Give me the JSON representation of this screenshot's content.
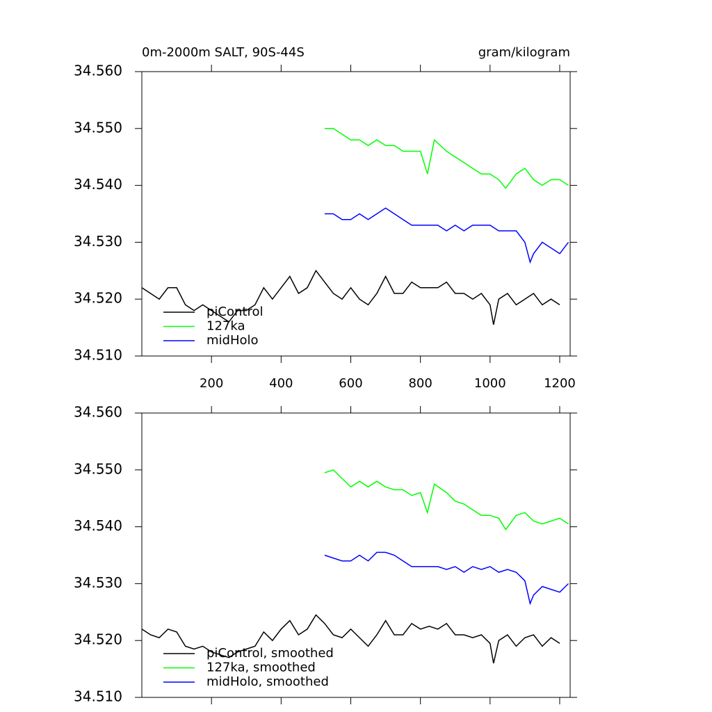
{
  "chart_data": [
    {
      "type": "line",
      "title": "0m-2000m SALT, 90S-44S",
      "units": "gram/kilogram",
      "xlim": [
        0,
        1230
      ],
      "xticks": [
        200,
        400,
        600,
        800,
        1000,
        1200
      ],
      "ylim": [
        34.51,
        34.56
      ],
      "yticks": [
        {
          "value": 34.51,
          "label": "34.510"
        },
        {
          "value": 34.52,
          "label": "34.520"
        },
        {
          "value": 34.53,
          "label": "34.530"
        },
        {
          "value": 34.54,
          "label": "34.540"
        },
        {
          "value": 34.55,
          "label": "34.550"
        },
        {
          "value": 34.56,
          "label": "34.560"
        }
      ],
      "series": [
        {
          "name": "piControl",
          "color": "#000000",
          "x": [
            0,
            25,
            50,
            75,
            100,
            125,
            150,
            175,
            200,
            225,
            250,
            275,
            300,
            325,
            350,
            375,
            400,
            425,
            450,
            475,
            500,
            525,
            550,
            575,
            600,
            625,
            650,
            675,
            700,
            725,
            750,
            775,
            800,
            825,
            850,
            875,
            900,
            925,
            950,
            975,
            1000,
            1010,
            1025,
            1050,
            1075,
            1100,
            1125,
            1150,
            1175,
            1200
          ],
          "values": [
            34.522,
            34.521,
            34.52,
            34.522,
            34.522,
            34.519,
            34.518,
            34.519,
            34.518,
            34.517,
            34.516,
            34.518,
            34.518,
            34.519,
            34.522,
            34.52,
            34.522,
            34.524,
            34.521,
            34.522,
            34.525,
            34.523,
            34.521,
            34.52,
            34.522,
            34.52,
            34.519,
            34.521,
            34.524,
            34.521,
            34.521,
            34.523,
            34.522,
            34.522,
            34.522,
            34.523,
            34.521,
            34.521,
            34.52,
            34.521,
            34.519,
            34.5155,
            34.52,
            34.521,
            34.519,
            34.52,
            34.521,
            34.519,
            34.52,
            34.519
          ]
        },
        {
          "name": "127ka",
          "color": "#00ff00",
          "x": [
            525,
            550,
            575,
            600,
            625,
            650,
            675,
            700,
            725,
            750,
            775,
            800,
            820,
            840,
            875,
            900,
            925,
            950,
            975,
            1000,
            1025,
            1045,
            1075,
            1100,
            1125,
            1150,
            1175,
            1200,
            1225
          ],
          "values": [
            34.55,
            34.55,
            34.549,
            34.548,
            34.548,
            34.547,
            34.548,
            34.547,
            34.547,
            34.546,
            34.546,
            34.546,
            34.542,
            34.548,
            34.546,
            34.545,
            34.544,
            34.543,
            34.542,
            34.542,
            34.541,
            34.5395,
            34.542,
            34.543,
            34.541,
            34.54,
            34.541,
            34.541,
            34.54
          ]
        },
        {
          "name": "midHolo",
          "color": "#0000ff",
          "x": [
            525,
            550,
            575,
            600,
            625,
            650,
            675,
            700,
            725,
            750,
            775,
            800,
            825,
            850,
            875,
            900,
            925,
            950,
            975,
            1000,
            1025,
            1050,
            1075,
            1100,
            1115,
            1125,
            1150,
            1175,
            1200,
            1225
          ],
          "values": [
            34.535,
            34.535,
            34.534,
            34.534,
            34.535,
            34.534,
            34.535,
            34.536,
            34.535,
            34.534,
            34.533,
            34.533,
            34.533,
            34.533,
            34.532,
            34.533,
            34.532,
            34.533,
            34.533,
            34.533,
            34.532,
            34.532,
            34.532,
            34.53,
            34.5265,
            34.528,
            34.53,
            34.529,
            34.528,
            34.53
          ]
        }
      ]
    },
    {
      "type": "line",
      "xlim": [
        0,
        1230
      ],
      "xticks": [
        200,
        400,
        600,
        800,
        1000,
        1200
      ],
      "ylim": [
        34.51,
        34.56
      ],
      "yticks": [
        {
          "value": 34.51,
          "label": "34.510"
        },
        {
          "value": 34.52,
          "label": "34.520"
        },
        {
          "value": 34.53,
          "label": "34.530"
        },
        {
          "value": 34.54,
          "label": "34.540"
        },
        {
          "value": 34.55,
          "label": "34.550"
        },
        {
          "value": 34.56,
          "label": "34.560"
        }
      ],
      "series": [
        {
          "name": "piControl, smoothed",
          "color": "#000000",
          "x": [
            0,
            25,
            50,
            75,
            100,
            125,
            150,
            175,
            200,
            225,
            250,
            275,
            300,
            325,
            350,
            375,
            400,
            425,
            450,
            475,
            500,
            525,
            550,
            575,
            600,
            625,
            650,
            675,
            700,
            725,
            750,
            775,
            800,
            825,
            850,
            875,
            900,
            925,
            950,
            975,
            1000,
            1010,
            1025,
            1050,
            1075,
            1100,
            1125,
            1150,
            1175,
            1200
          ],
          "values": [
            34.522,
            34.521,
            34.5205,
            34.522,
            34.5215,
            34.519,
            34.5185,
            34.519,
            34.518,
            34.5175,
            34.517,
            34.518,
            34.5185,
            34.519,
            34.5215,
            34.52,
            34.522,
            34.5235,
            34.521,
            34.522,
            34.5245,
            34.523,
            34.521,
            34.5205,
            34.522,
            34.5205,
            34.519,
            34.521,
            34.5235,
            34.521,
            34.521,
            34.523,
            34.522,
            34.5225,
            34.522,
            34.523,
            34.521,
            34.521,
            34.5205,
            34.521,
            34.5195,
            34.516,
            34.52,
            34.521,
            34.519,
            34.5205,
            34.521,
            34.519,
            34.5205,
            34.5195
          ]
        },
        {
          "name": "127ka, smoothed",
          "color": "#00ff00",
          "x": [
            525,
            550,
            575,
            600,
            625,
            650,
            675,
            700,
            725,
            750,
            775,
            800,
            820,
            840,
            875,
            900,
            925,
            950,
            975,
            1000,
            1025,
            1045,
            1075,
            1100,
            1125,
            1150,
            1175,
            1200,
            1225
          ],
          "values": [
            34.5495,
            34.55,
            34.5485,
            34.547,
            34.548,
            34.547,
            34.548,
            34.547,
            34.5465,
            34.5465,
            34.5455,
            34.546,
            34.5425,
            34.5475,
            34.546,
            34.5445,
            34.544,
            34.543,
            34.542,
            34.542,
            34.5415,
            34.5395,
            34.542,
            34.5425,
            34.541,
            34.5405,
            34.541,
            34.5415,
            34.5405
          ]
        },
        {
          "name": "midHolo, smoothed",
          "color": "#0000ff",
          "x": [
            525,
            550,
            575,
            600,
            625,
            650,
            675,
            700,
            725,
            750,
            775,
            800,
            825,
            850,
            875,
            900,
            925,
            950,
            975,
            1000,
            1025,
            1050,
            1075,
            1100,
            1115,
            1125,
            1150,
            1175,
            1200,
            1225
          ],
          "values": [
            34.535,
            34.5345,
            34.534,
            34.534,
            34.535,
            34.534,
            34.5355,
            34.5355,
            34.535,
            34.534,
            34.533,
            34.533,
            34.533,
            34.533,
            34.5325,
            34.533,
            34.532,
            34.533,
            34.5325,
            34.533,
            34.532,
            34.5325,
            34.532,
            34.5305,
            34.5265,
            34.528,
            34.5295,
            34.529,
            34.5285,
            34.53
          ]
        }
      ]
    }
  ]
}
